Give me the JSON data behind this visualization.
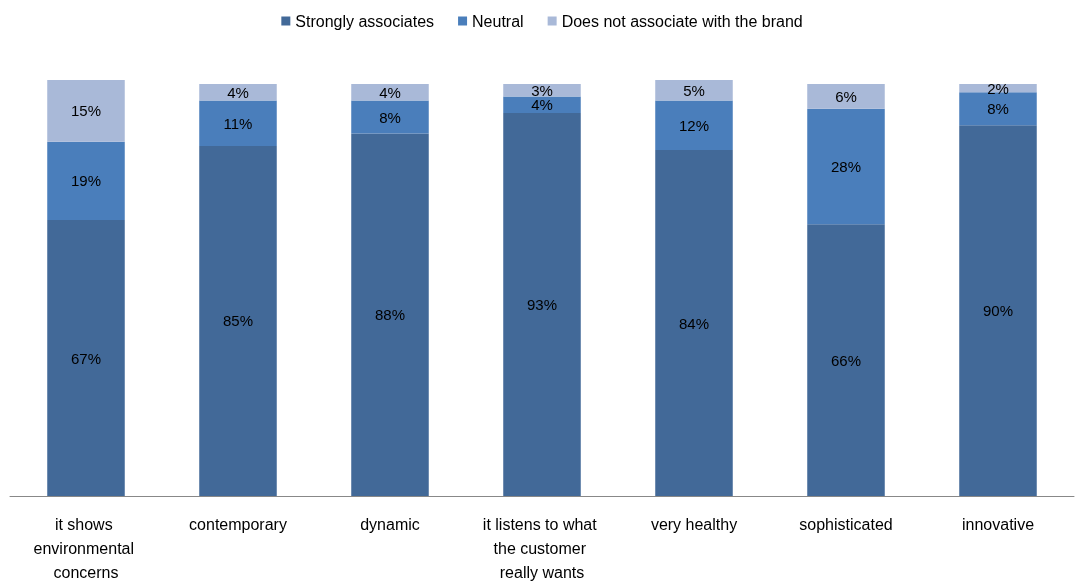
{
  "chart_data": {
    "type": "bar",
    "stacked": true,
    "legend": "top",
    "categories": [
      "it shows environmental concerns",
      "contemporary",
      "dynamic",
      "it listens to what the customer really wants",
      "very healthy",
      "sophisticated",
      "innovative"
    ],
    "series": [
      {
        "name": "Strongly associates",
        "color": "#426998",
        "values": [
          67,
          85,
          88,
          93,
          84,
          66,
          90
        ],
        "value_labels": [
          "67%",
          "85%",
          "88%",
          "93%",
          "84%",
          "66%",
          "90%"
        ]
      },
      {
        "name": "Neutral",
        "color": "#4a7ebb",
        "values": [
          19,
          11,
          8,
          4,
          12,
          28,
          8
        ],
        "value_labels": [
          "19%",
          "11%",
          "8%",
          "4%",
          "12%",
          "28%",
          "8%"
        ]
      },
      {
        "name": "Does not associate with the brand",
        "color": "#a9b9d8",
        "values": [
          15,
          4,
          4,
          3,
          5,
          6,
          2
        ],
        "value_labels": [
          "15%",
          "4%",
          "4%",
          "3%",
          "5%",
          "6%",
          "2%"
        ]
      }
    ]
  }
}
